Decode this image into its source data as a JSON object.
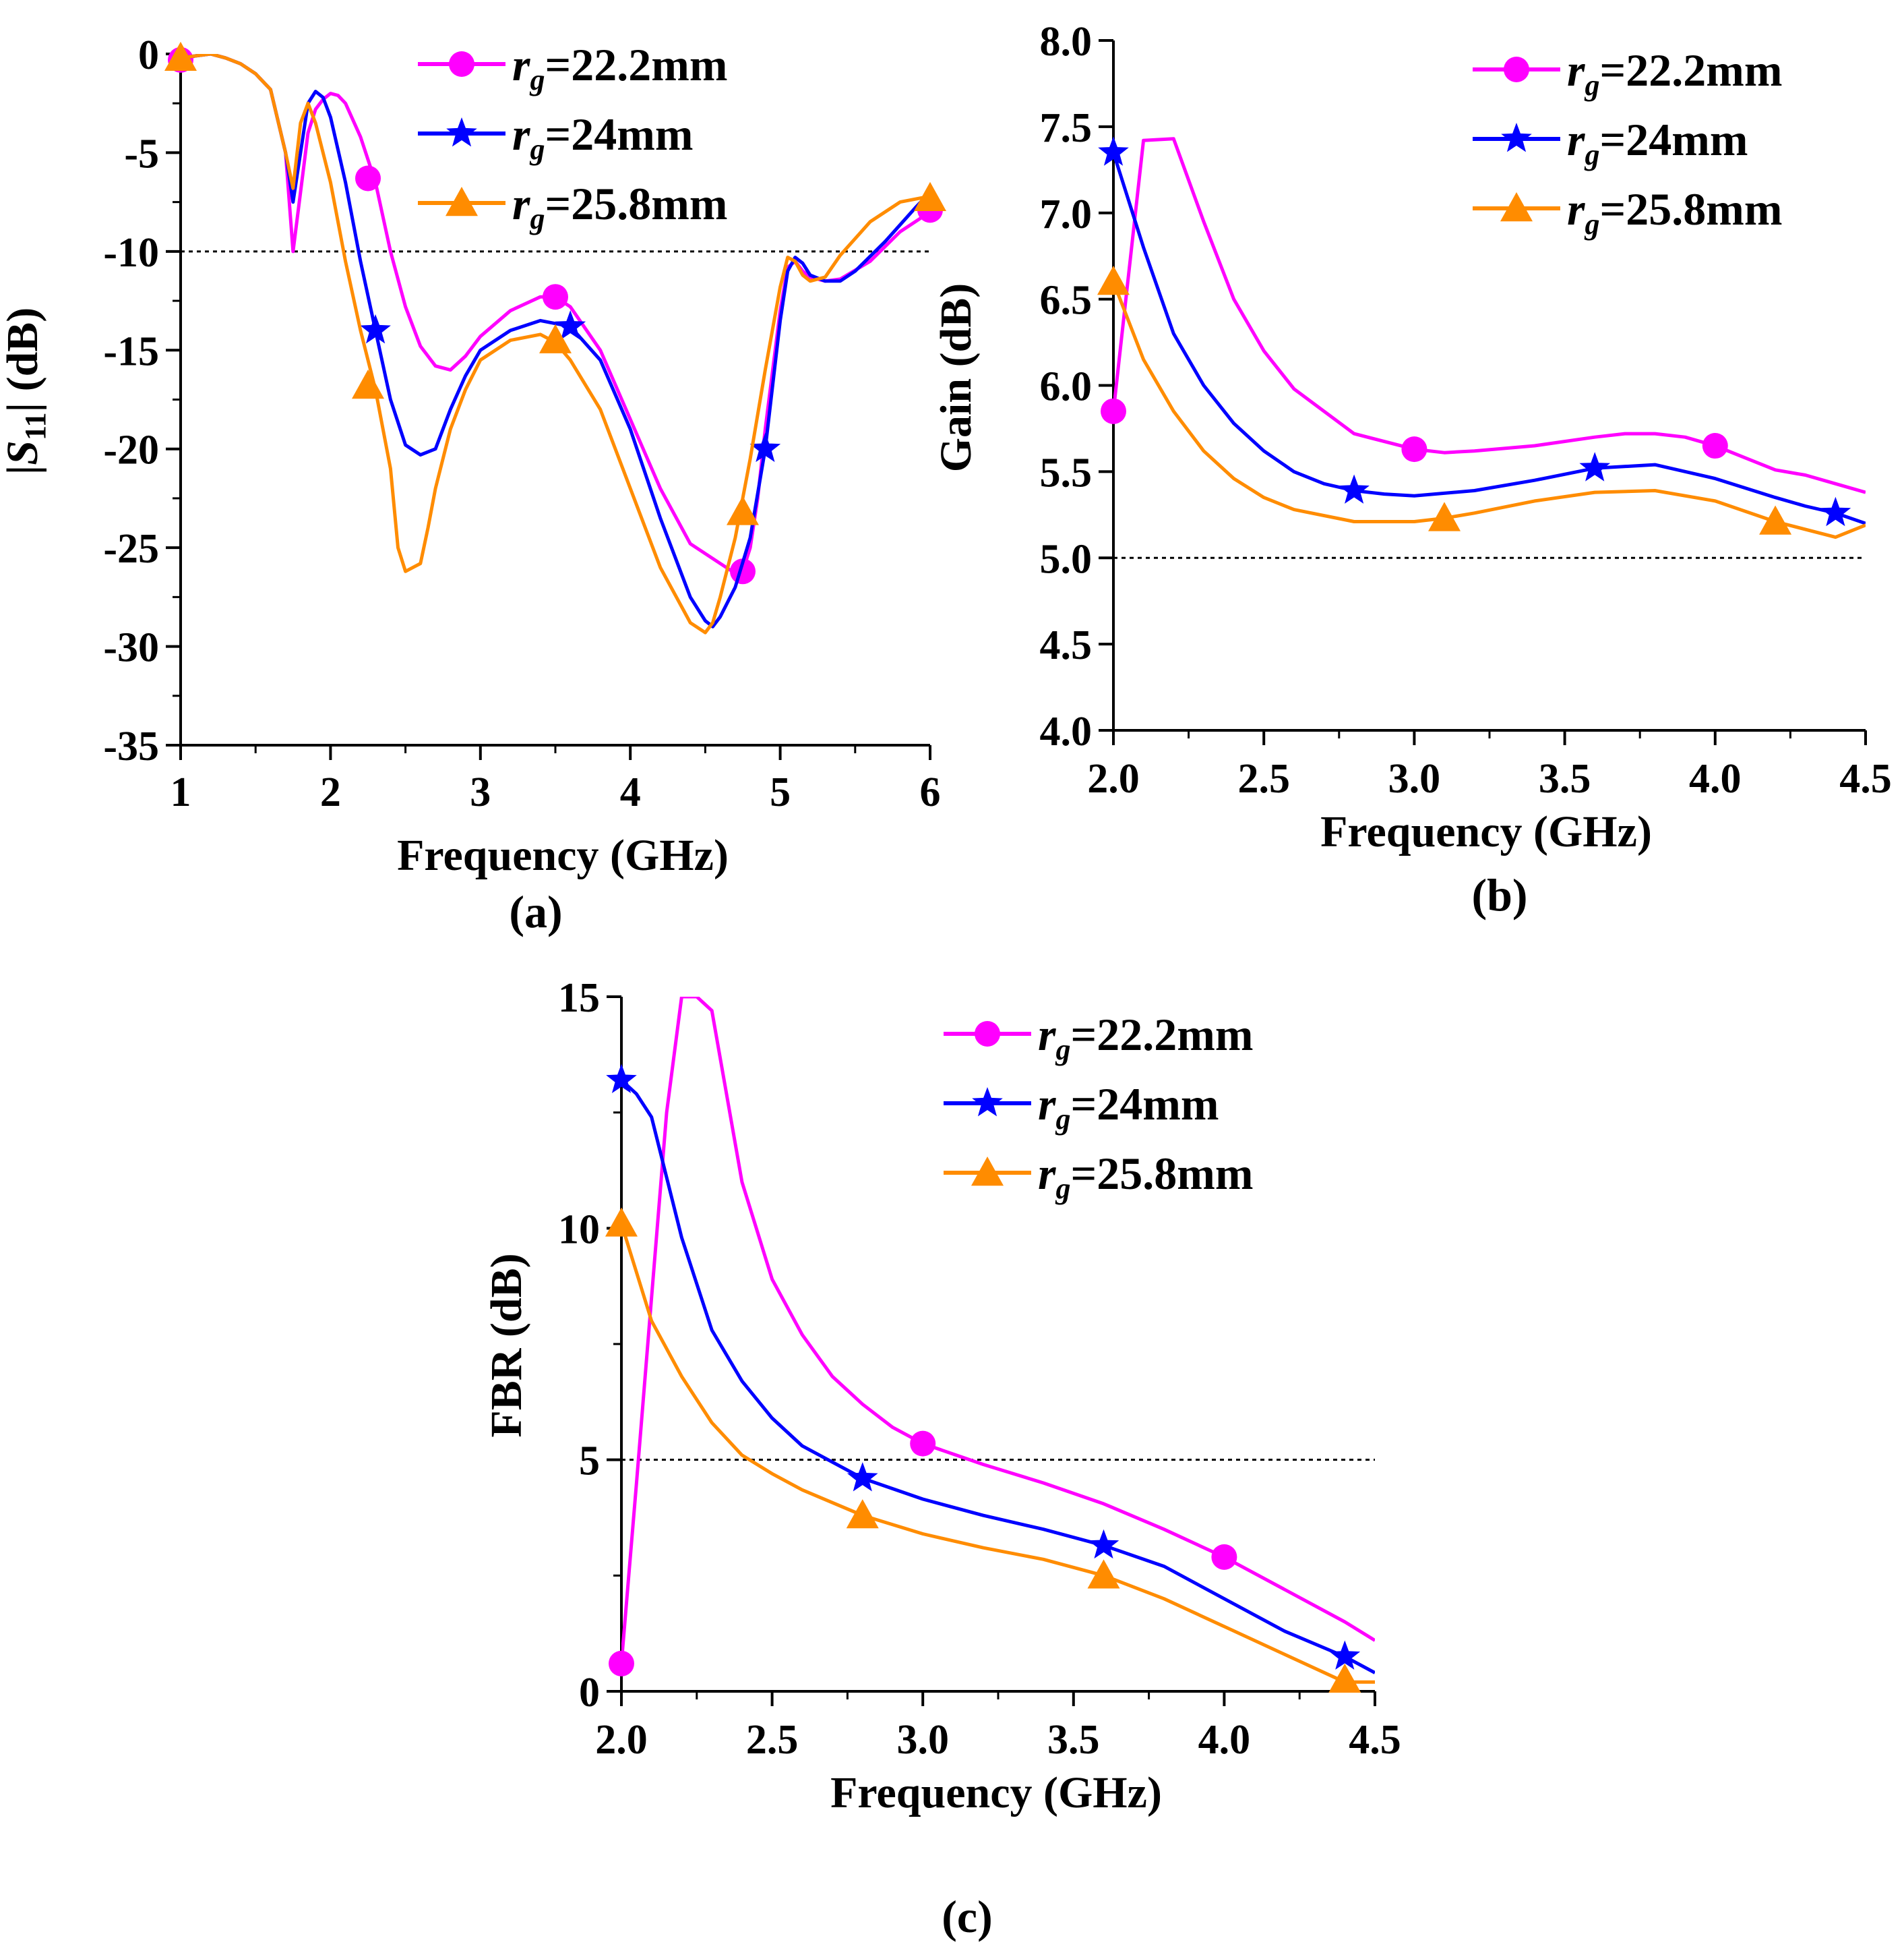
{
  "chart_data": [
    {
      "id": "a",
      "type": "line",
      "caption": "(a)",
      "xlabel": "Frequency (GHz)",
      "ylabel": "|S11| (dB)",
      "xlim": [
        1,
        6
      ],
      "ylim": [
        -35,
        0
      ],
      "xticks": [
        "1",
        "2",
        "3",
        "4",
        "5",
        "6"
      ],
      "yticks": [
        "0",
        "-5",
        "-10",
        "-15",
        "-20",
        "-25",
        "-30",
        "-35"
      ],
      "reference_line": -10,
      "legend_position": "top-right",
      "series": [
        {
          "name": "rg=22.2mm",
          "color": "#ff00ff",
          "marker": "circle",
          "x": [
            1.0,
            1.1,
            1.2,
            1.3,
            1.4,
            1.5,
            1.6,
            1.7,
            1.75,
            1.8,
            1.85,
            1.9,
            1.95,
            2.0,
            2.05,
            2.1,
            2.2,
            2.3,
            2.4,
            2.5,
            2.6,
            2.7,
            2.8,
            2.9,
            3.0,
            3.2,
            3.4,
            3.5,
            3.6,
            3.8,
            4.0,
            4.2,
            4.4,
            4.6,
            4.7,
            4.75,
            4.8,
            4.85,
            4.9,
            5.0,
            5.05,
            5.1,
            5.15,
            5.2,
            5.3,
            5.4,
            5.6,
            5.8,
            6.0
          ],
          "y": [
            -0.3,
            -0.1,
            0,
            -0.2,
            -0.5,
            -1.0,
            -1.8,
            -5.0,
            -10.0,
            -7.0,
            -4.0,
            -2.8,
            -2.3,
            -2.0,
            -2.1,
            -2.5,
            -4.2,
            -6.5,
            -10.0,
            -12.8,
            -14.8,
            -15.8,
            -16.0,
            -15.3,
            -14.3,
            -13.0,
            -12.3,
            -12.3,
            -12.8,
            -15.0,
            -18.5,
            -22.0,
            -24.8,
            -25.8,
            -26.3,
            -26.2,
            -25.0,
            -22.5,
            -19.0,
            -13.0,
            -10.8,
            -10.5,
            -11.0,
            -11.3,
            -11.5,
            -11.4,
            -10.5,
            -9.0,
            -8.0
          ],
          "marker_x": [
            1.0,
            2.25,
            3.5,
            4.75,
            6.0
          ],
          "marker_y": [
            -0.3,
            -6.3,
            -12.3,
            -26.2,
            -7.9
          ]
        },
        {
          "name": "rg=24mm",
          "color": "#0000ff",
          "marker": "star",
          "x": [
            1.0,
            1.1,
            1.2,
            1.3,
            1.4,
            1.5,
            1.6,
            1.7,
            1.75,
            1.8,
            1.85,
            1.9,
            1.95,
            2.0,
            2.1,
            2.2,
            2.3,
            2.4,
            2.5,
            2.6,
            2.7,
            2.8,
            2.9,
            3.0,
            3.2,
            3.4,
            3.6,
            3.8,
            4.0,
            4.2,
            4.4,
            4.5,
            4.55,
            4.6,
            4.7,
            4.8,
            4.9,
            5.0,
            5.05,
            5.1,
            5.15,
            5.2,
            5.3,
            5.4,
            5.5,
            5.7,
            5.9,
            6.0
          ],
          "y": [
            -0.2,
            -0.1,
            0,
            -0.2,
            -0.5,
            -1.0,
            -1.8,
            -5.0,
            -7.5,
            -5.0,
            -2.5,
            -1.9,
            -2.2,
            -3.2,
            -6.5,
            -10.5,
            -14.0,
            -17.5,
            -19.8,
            -20.3,
            -20.0,
            -18.0,
            -16.3,
            -15.0,
            -14.0,
            -13.5,
            -13.8,
            -15.5,
            -19.0,
            -23.5,
            -27.5,
            -28.7,
            -29.0,
            -28.5,
            -27.0,
            -24.5,
            -20.0,
            -13.5,
            -11.0,
            -10.3,
            -10.6,
            -11.2,
            -11.5,
            -11.5,
            -11.0,
            -9.5,
            -7.8,
            -7.0
          ],
          "marker_x": [
            2.3,
            3.6,
            4.9
          ],
          "marker_y": [
            -14.0,
            -13.8,
            -20.0
          ]
        },
        {
          "name": "rg=25.8mm",
          "color": "#ff8c00",
          "marker": "triangle",
          "x": [
            1.0,
            1.1,
            1.2,
            1.3,
            1.4,
            1.5,
            1.6,
            1.7,
            1.75,
            1.8,
            1.85,
            1.9,
            2.0,
            2.1,
            2.2,
            2.3,
            2.4,
            2.45,
            2.5,
            2.55,
            2.6,
            2.65,
            2.7,
            2.8,
            2.9,
            3.0,
            3.2,
            3.4,
            3.5,
            3.6,
            3.8,
            4.0,
            4.2,
            4.4,
            4.5,
            4.55,
            4.6,
            4.7,
            4.8,
            4.9,
            5.0,
            5.05,
            5.1,
            5.15,
            5.2,
            5.3,
            5.4,
            5.6,
            5.8,
            6.0
          ],
          "y": [
            -0.2,
            -0.1,
            0,
            -0.2,
            -0.5,
            -1.0,
            -1.8,
            -5.0,
            -6.8,
            -3.5,
            -2.5,
            -3.5,
            -6.5,
            -10.5,
            -14.0,
            -17.0,
            -21.0,
            -25.0,
            -26.2,
            -26.0,
            -25.8,
            -24.0,
            -22.0,
            -19.0,
            -17.0,
            -15.5,
            -14.5,
            -14.2,
            -14.6,
            -15.5,
            -18.0,
            -22.0,
            -26.0,
            -28.8,
            -29.3,
            -28.8,
            -27.5,
            -24.5,
            -20.5,
            -16.0,
            -11.8,
            -10.3,
            -10.5,
            -11.2,
            -11.5,
            -11.3,
            -10.2,
            -8.5,
            -7.5,
            -7.2
          ],
          "marker_x": [
            1.0,
            2.25,
            3.5,
            4.75,
            6.0
          ],
          "marker_y": [
            -0.2,
            -16.8,
            -14.5,
            -23.2,
            -7.3
          ]
        }
      ]
    },
    {
      "id": "b",
      "type": "line",
      "caption": "(b)",
      "xlabel": "Frequency (GHz)",
      "ylabel": "Gain (dB)",
      "xlim": [
        2.0,
        4.5
      ],
      "ylim": [
        4.0,
        8.0
      ],
      "xticks": [
        "2.0",
        "2.5",
        "3.0",
        "3.5",
        "4.0",
        "4.5"
      ],
      "yticks": [
        "4.0",
        "4.5",
        "5.0",
        "5.5",
        "6.0",
        "6.5",
        "7.0",
        "7.5",
        "8.0"
      ],
      "reference_line": 5.0,
      "legend_position": "top-right",
      "series": [
        {
          "name": "rg=22.2mm",
          "color": "#ff00ff",
          "marker": "circle",
          "x": [
            2.0,
            2.1,
            2.2,
            2.3,
            2.4,
            2.5,
            2.6,
            2.8,
            3.0,
            3.1,
            3.2,
            3.4,
            3.6,
            3.7,
            3.8,
            3.9,
            4.0,
            4.1,
            4.2,
            4.3,
            4.4,
            4.5
          ],
          "y": [
            5.85,
            7.42,
            7.43,
            6.95,
            6.5,
            6.2,
            5.98,
            5.72,
            5.63,
            5.61,
            5.62,
            5.65,
            5.7,
            5.72,
            5.72,
            5.7,
            5.65,
            5.58,
            5.51,
            5.48,
            5.43,
            5.38
          ],
          "marker_x": [
            2.0,
            3.0,
            4.0
          ],
          "marker_y": [
            5.85,
            5.63,
            5.65
          ]
        },
        {
          "name": "rg=24mm",
          "color": "#0000ff",
          "marker": "star",
          "x": [
            2.0,
            2.1,
            2.2,
            2.3,
            2.4,
            2.5,
            2.6,
            2.7,
            2.8,
            2.9,
            3.0,
            3.2,
            3.4,
            3.6,
            3.8,
            4.0,
            4.2,
            4.3,
            4.4,
            4.5
          ],
          "y": [
            7.35,
            6.8,
            6.3,
            6.0,
            5.78,
            5.62,
            5.5,
            5.43,
            5.39,
            5.37,
            5.36,
            5.39,
            5.45,
            5.52,
            5.54,
            5.46,
            5.35,
            5.3,
            5.26,
            5.2
          ],
          "marker_x": [
            2.0,
            2.8,
            3.6,
            4.4
          ],
          "marker_y": [
            7.35,
            5.39,
            5.52,
            5.26
          ]
        },
        {
          "name": "rg=25.8mm",
          "color": "#ff8c00",
          "marker": "triangle",
          "x": [
            2.0,
            2.1,
            2.2,
            2.3,
            2.4,
            2.5,
            2.6,
            2.8,
            3.0,
            3.1,
            3.2,
            3.4,
            3.6,
            3.8,
            4.0,
            4.2,
            4.4,
            4.5
          ],
          "y": [
            6.6,
            6.15,
            5.85,
            5.62,
            5.46,
            5.35,
            5.28,
            5.21,
            5.21,
            5.23,
            5.26,
            5.33,
            5.38,
            5.39,
            5.33,
            5.21,
            5.12,
            5.19
          ],
          "marker_x": [
            2.0,
            3.1,
            4.2
          ],
          "marker_y": [
            6.6,
            5.23,
            5.21
          ]
        }
      ]
    },
    {
      "id": "c",
      "type": "line",
      "caption": "(c)",
      "xlabel": "Frequency (GHz)",
      "ylabel": "FBR (dB)",
      "xlim": [
        2.0,
        4.5
      ],
      "ylim": [
        0,
        15
      ],
      "xticks": [
        "2.0",
        "2.5",
        "3.0",
        "3.5",
        "4.0",
        "4.5"
      ],
      "yticks": [
        "0",
        "5",
        "10",
        "15"
      ],
      "reference_line": 5,
      "legend_position": "top-right",
      "series": [
        {
          "name": "rg=22.2mm",
          "color": "#ff00ff",
          "marker": "circle",
          "x": [
            2.0,
            2.05,
            2.1,
            2.15,
            2.2,
            2.25,
            2.3,
            2.4,
            2.5,
            2.6,
            2.7,
            2.8,
            2.9,
            3.0,
            3.2,
            3.4,
            3.6,
            3.8,
            4.0,
            4.2,
            4.4,
            4.5
          ],
          "y": [
            0.6,
            4.5,
            8.5,
            12.5,
            15.0,
            15.0,
            14.7,
            11.0,
            8.9,
            7.7,
            6.8,
            6.2,
            5.7,
            5.35,
            4.9,
            4.5,
            4.05,
            3.5,
            2.9,
            2.2,
            1.5,
            1.1
          ],
          "marker_x": [
            2.0,
            3.0,
            4.0
          ],
          "marker_y": [
            0.6,
            5.35,
            2.9
          ]
        },
        {
          "name": "rg=24mm",
          "color": "#0000ff",
          "marker": "star",
          "x": [
            2.0,
            2.05,
            2.1,
            2.2,
            2.3,
            2.4,
            2.5,
            2.6,
            2.8,
            3.0,
            3.2,
            3.4,
            3.6,
            3.8,
            4.0,
            4.2,
            4.4,
            4.5
          ],
          "y": [
            13.2,
            12.9,
            12.4,
            9.8,
            7.8,
            6.7,
            5.9,
            5.3,
            4.6,
            4.15,
            3.8,
            3.5,
            3.15,
            2.7,
            2.0,
            1.3,
            0.75,
            0.4
          ],
          "marker_x": [
            2.0,
            2.8,
            3.6,
            4.4
          ],
          "marker_y": [
            13.2,
            4.6,
            3.15,
            0.75
          ]
        },
        {
          "name": "rg=25.8mm",
          "color": "#ff8c00",
          "marker": "triangle",
          "x": [
            2.0,
            2.1,
            2.2,
            2.3,
            2.4,
            2.5,
            2.6,
            2.8,
            3.0,
            3.2,
            3.4,
            3.6,
            3.8,
            4.0,
            4.2,
            4.4,
            4.5
          ],
          "y": [
            10.1,
            8.0,
            6.8,
            5.8,
            5.1,
            4.7,
            4.35,
            3.8,
            3.4,
            3.1,
            2.85,
            2.5,
            2.0,
            1.4,
            0.8,
            0.2,
            0.2
          ],
          "marker_x": [
            2.0,
            2.8,
            3.6,
            4.4
          ],
          "marker_y": [
            10.1,
            3.8,
            2.5,
            0.25
          ]
        }
      ]
    }
  ]
}
